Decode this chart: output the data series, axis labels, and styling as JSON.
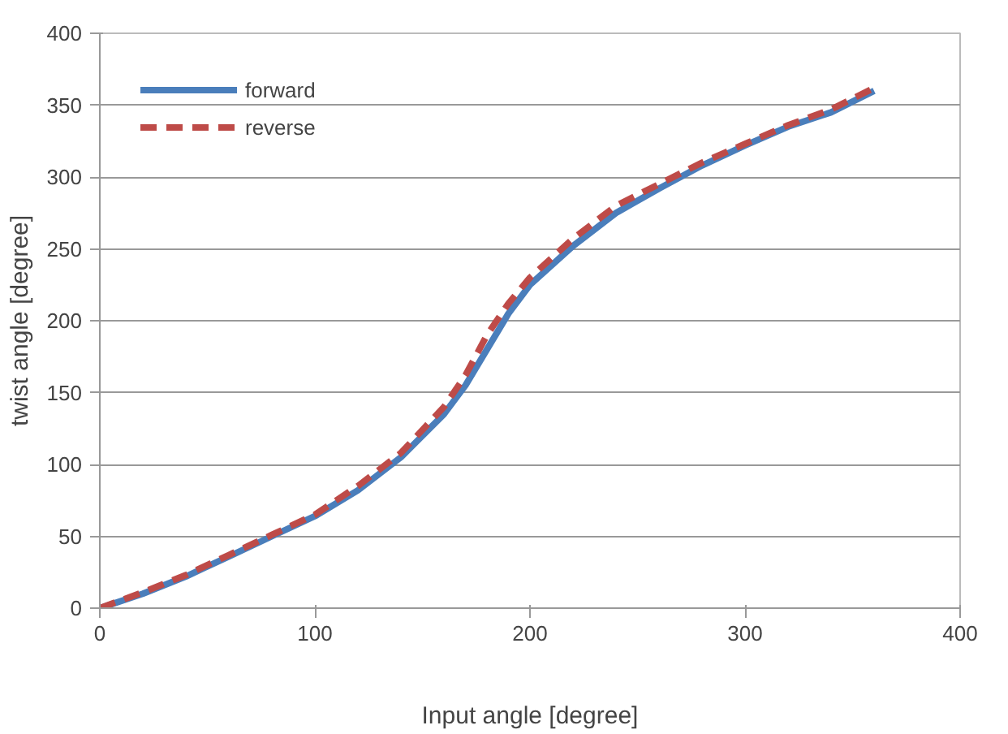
{
  "chart_data": {
    "type": "line",
    "xlabel": "Input angle [degree]",
    "ylabel": "twist angle [degree]",
    "xlim": [
      0,
      400
    ],
    "ylim": [
      0,
      400
    ],
    "xticks": [
      0,
      100,
      200,
      300,
      400
    ],
    "yticks": [
      0,
      50,
      100,
      150,
      200,
      250,
      300,
      350,
      400
    ],
    "grid": "y",
    "legend": "top left",
    "series": [
      {
        "name": "forward",
        "color": "#4a7ebb",
        "line_style": "solid",
        "x": [
          0,
          20,
          40,
          60,
          80,
          100,
          120,
          140,
          160,
          170,
          180,
          190,
          200,
          220,
          240,
          260,
          280,
          300,
          320,
          340,
          360
        ],
        "values": [
          0,
          10,
          22,
          36,
          50,
          64,
          82,
          105,
          135,
          155,
          180,
          205,
          225,
          252,
          275,
          292,
          308,
          322,
          335,
          345,
          360
        ]
      },
      {
        "name": "reverse",
        "color": "#be4b48",
        "line_style": "dashed",
        "x": [
          0,
          20,
          40,
          60,
          80,
          100,
          120,
          140,
          160,
          170,
          180,
          190,
          200,
          220,
          240,
          260,
          280,
          300,
          320,
          340,
          360
        ],
        "values": [
          0,
          11,
          23,
          37,
          51,
          65,
          85,
          108,
          140,
          162,
          190,
          212,
          230,
          257,
          280,
          295,
          310,
          323,
          336,
          347,
          362
        ]
      }
    ]
  }
}
